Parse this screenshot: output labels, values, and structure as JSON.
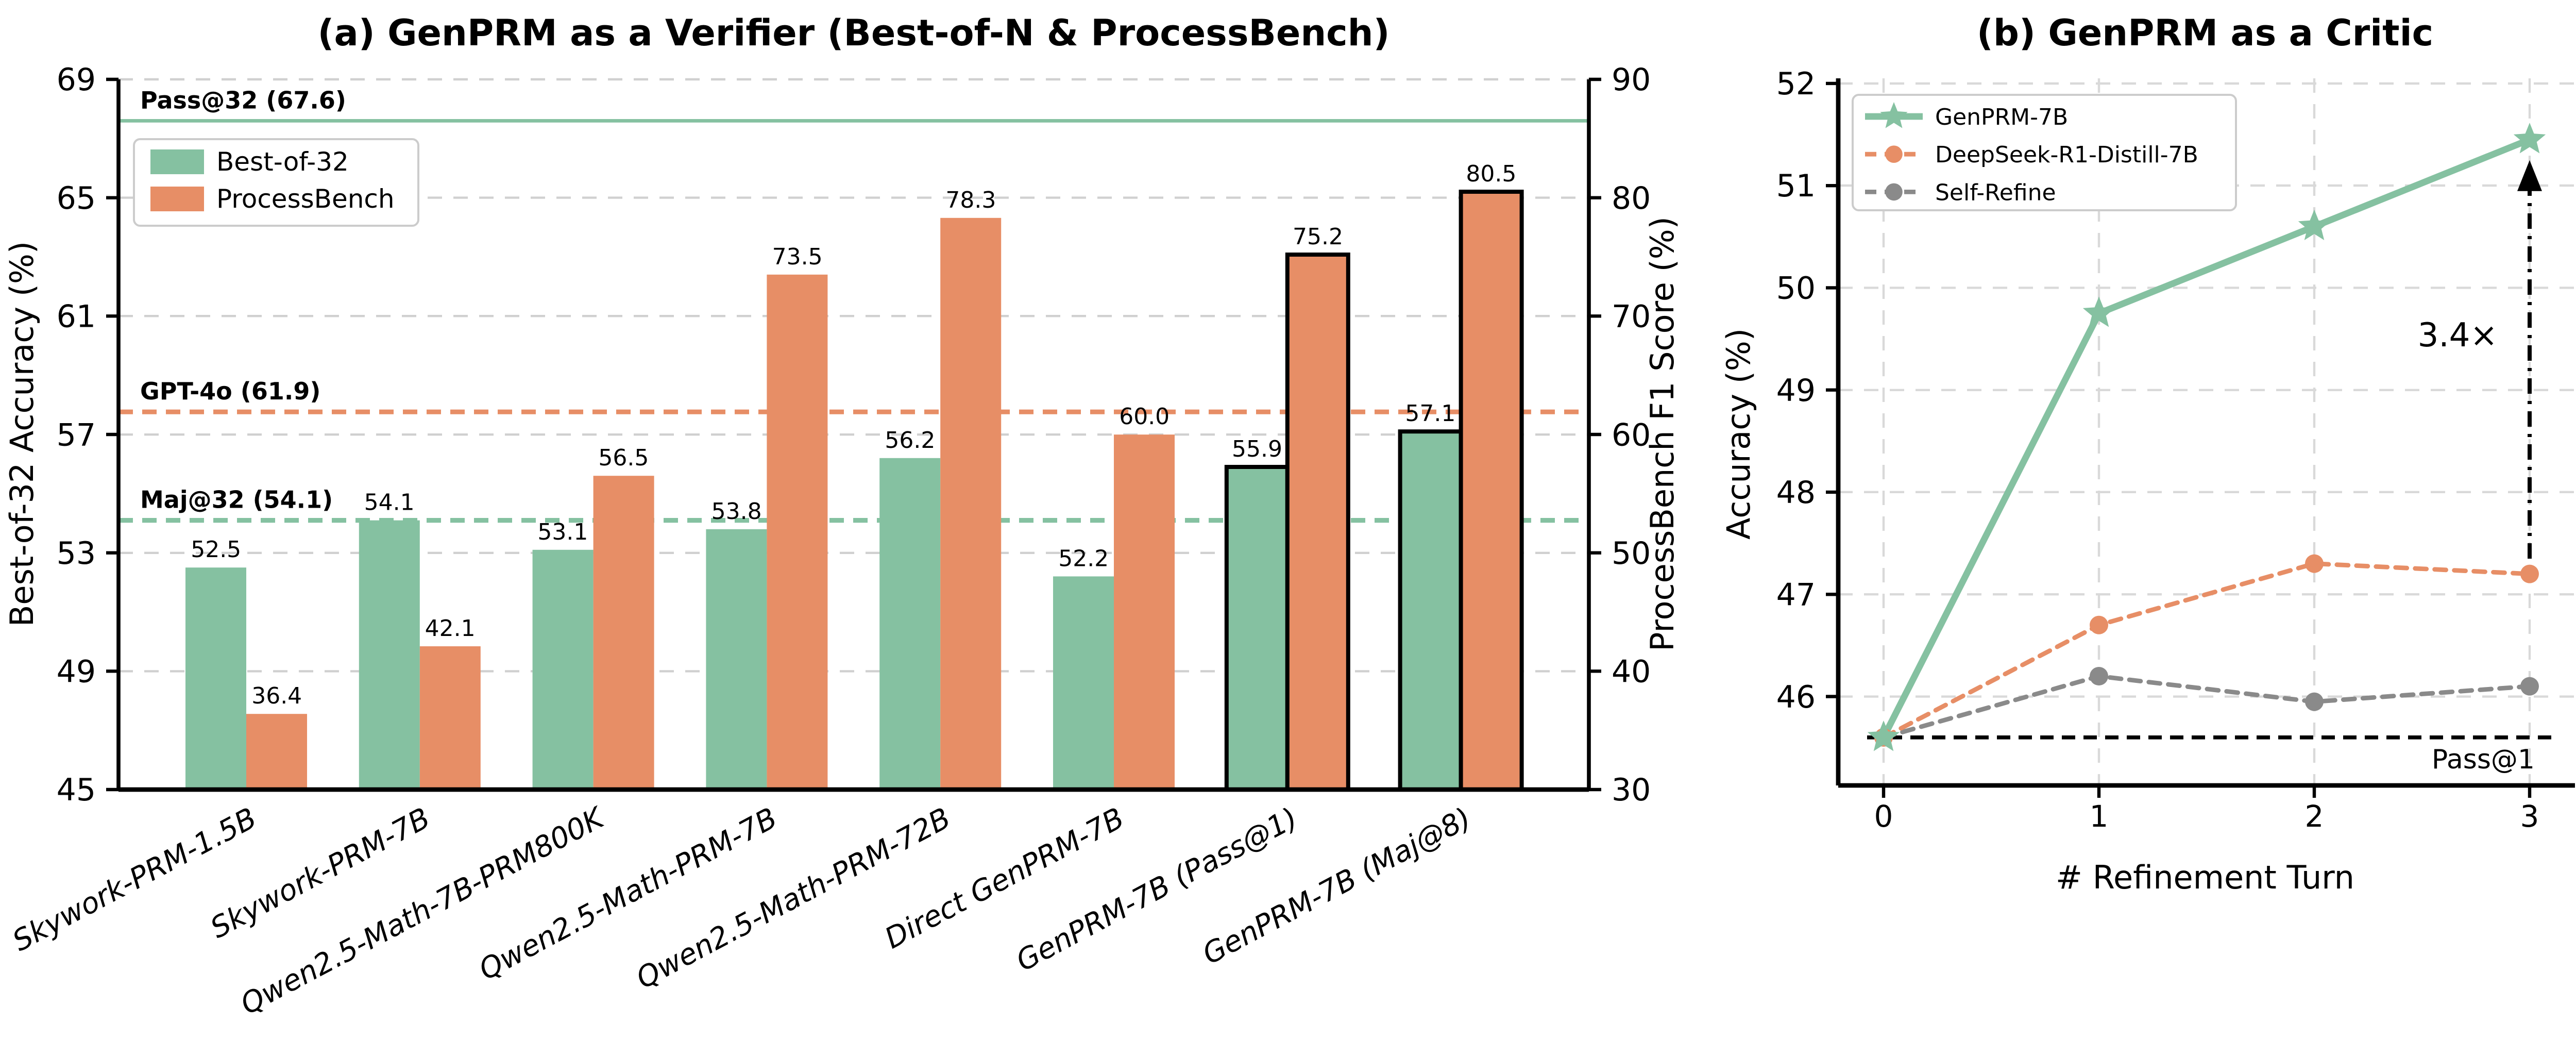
{
  "chart_data": [
    {
      "type": "bar",
      "title": "(a) GenPRM as a Verifier (Best-of-N & ProcessBench)",
      "categories": [
        "Skywork-PRM-1.5B",
        "Skywork-PRM-7B",
        "Qwen2.5-Math-7B-PRM800K",
        "Qwen2.5-Math-PRM-7B",
        "Qwen2.5-Math-PRM-72B",
        "Direct GenPRM-7B",
        "GenPRM-7B (Pass@1)",
        "GenPRM-7B (Maj@8)"
      ],
      "series": [
        {
          "name": "Best-of-32",
          "axis": "left",
          "color": "#85c1a1",
          "values": [
            52.5,
            54.1,
            53.1,
            53.8,
            56.2,
            52.2,
            55.9,
            57.1
          ]
        },
        {
          "name": "ProcessBench",
          "axis": "right",
          "color": "#e78e66",
          "values": [
            36.4,
            42.1,
            56.5,
            73.5,
            78.3,
            60.0,
            75.2,
            80.5
          ]
        }
      ],
      "highlight_black_edge": [
        "GenPRM-7B (Pass@1)",
        "GenPRM-7B (Maj@8)"
      ],
      "axis_left": {
        "label": "Best-of-32 Accuracy (%)",
        "ticks": [
          45,
          49,
          53,
          57,
          61,
          65,
          69
        ],
        "lim": [
          45,
          69
        ]
      },
      "axis_right": {
        "label": "ProcessBench F1 Score (%)",
        "ticks": [
          30,
          40,
          50,
          60,
          70,
          80,
          90
        ],
        "lim": [
          30,
          90
        ]
      },
      "reference_lines": [
        {
          "label": "Pass@32 (67.6)",
          "value": 67.6,
          "axis": "left",
          "style": "solid",
          "color": "#85c1a1"
        },
        {
          "label": "GPT-4o (61.9)",
          "value": 61.9,
          "axis": "right",
          "style": "dashed",
          "color": "#e78e66"
        },
        {
          "label": "Maj@32 (54.1)",
          "value": 54.1,
          "axis": "left",
          "style": "dashed",
          "color": "#85c1a1"
        }
      ],
      "legend_position": "upper left",
      "grid": true
    },
    {
      "type": "line",
      "title": "(b) GenPRM as a Critic",
      "xlabel": "# Refinement Turn",
      "ylabel": "Accuracy (%)",
      "x": [
        0,
        1,
        2,
        3
      ],
      "xticks": [
        0,
        1,
        2,
        3
      ],
      "yticks": [
        46,
        47,
        48,
        49,
        50,
        51,
        52
      ],
      "ylim": [
        45.13,
        52.05
      ],
      "series": [
        {
          "name": "GenPRM-7B",
          "color": "#85c1a1",
          "marker": "star",
          "line": "solid",
          "values": [
            45.6,
            49.75,
            50.6,
            51.45
          ]
        },
        {
          "name": "DeepSeek-R1-Distill-7B",
          "color": "#e78e66",
          "marker": "circle",
          "line": "dashed",
          "values": [
            45.6,
            46.7,
            47.3,
            47.2
          ]
        },
        {
          "name": "Self-Refine",
          "color": "#8a8a8a",
          "marker": "circle",
          "line": "dashed",
          "values": [
            45.6,
            46.2,
            45.95,
            46.1
          ]
        }
      ],
      "baseline": {
        "label": "Pass@1",
        "value": 45.6,
        "style": "dashed",
        "color": "#000000"
      },
      "annotation": {
        "label": "3.4×",
        "x": 3,
        "arrow_from": 47.35,
        "arrow_to": 51.25
      },
      "legend_position": "upper left",
      "grid": true
    }
  ]
}
